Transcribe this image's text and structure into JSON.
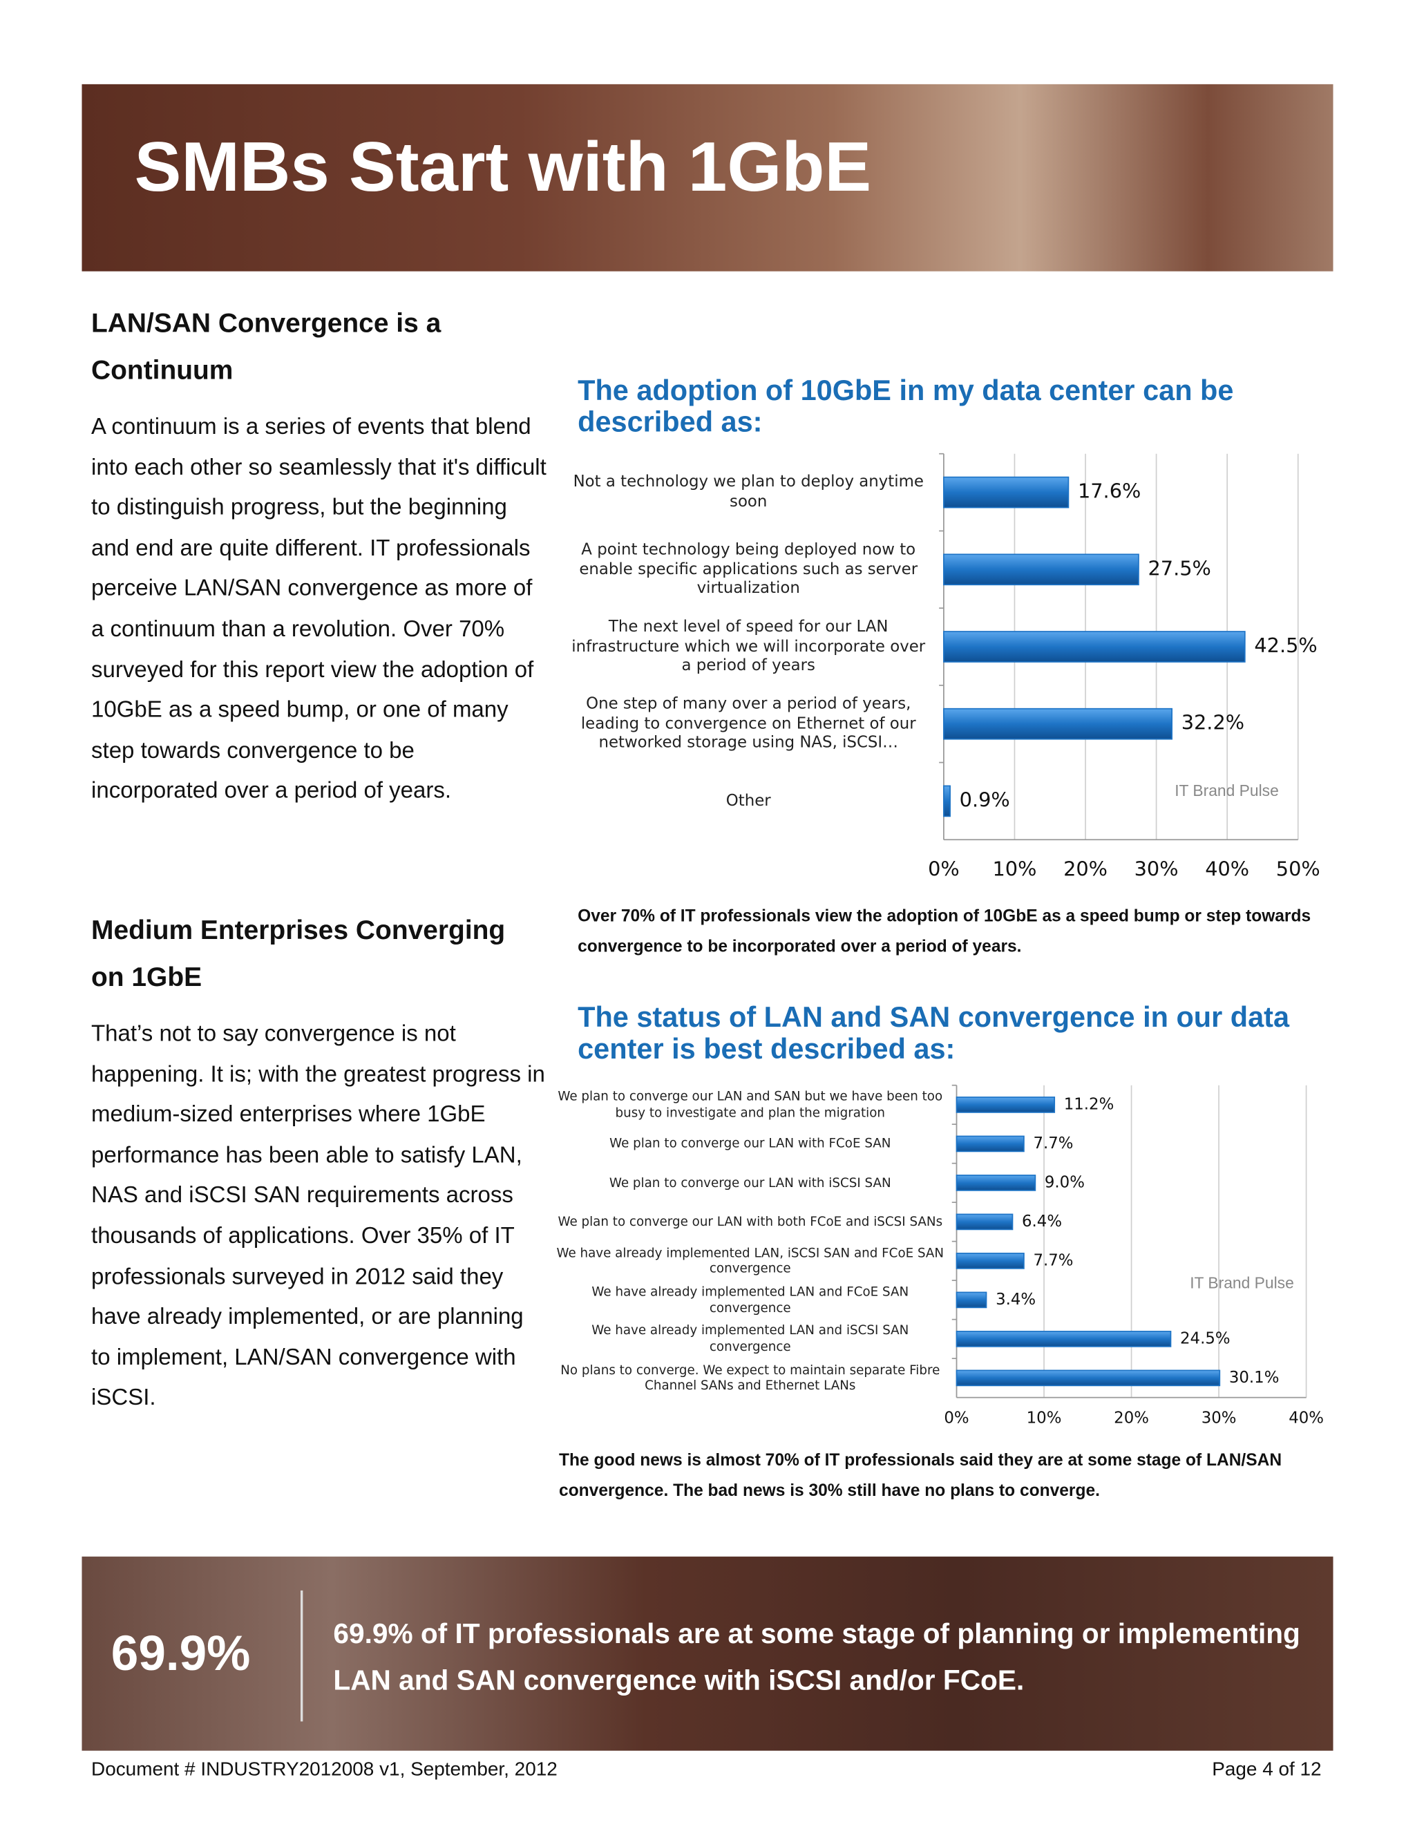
{
  "header": {
    "title": "SMBs Start with 1GbE"
  },
  "sections": [
    {
      "heading": "LAN/SAN Convergence is a Continuum",
      "body": "A continuum is a series of events that blend into each other so seamlessly that it's difficult to distinguish progress, but the beginning and end are quite different. IT professionals perceive LAN/SAN convergence as more of a continuum than a revolution.  Over 70% surveyed for this report view the adoption of 10GbE as a speed bump, or one of many step towards convergence to be incorporated over a period of years."
    },
    {
      "heading": "Medium Enterprises Converging on 1GbE",
      "body": "That’s not to say convergence is not happening. It is; with the greatest progress in medium-sized enterprises where 1GbE performance has been able to satisfy LAN, NAS and iSCSI SAN requirements across thousands of applications. Over 35% of IT professionals surveyed in 2012 said they have already implemented, or are planning to implement, LAN/SAN convergence with iSCSI."
    }
  ],
  "chart_data": [
    {
      "type": "bar",
      "orientation": "horizontal",
      "title": "The adoption of 10GbE in my data center can be described as:",
      "categories": [
        "Not a technology we plan to deploy anytime soon",
        "A point technology being deployed now to enable specific applications such as server virtualization",
        "The next level of speed for our LAN infrastructure which we will incorporate over a period of years",
        "One step of many over a period of years, leading to convergence on Ethernet of our networked storage using NAS, iSCSI…",
        "Other"
      ],
      "values": [
        17.6,
        27.5,
        42.5,
        32.2,
        0.9
      ],
      "value_labels": [
        "17.6%",
        "27.5%",
        "42.5%",
        "32.2%",
        "0.9%"
      ],
      "color": "#1e74c6",
      "xlim": [
        0,
        50
      ],
      "xticks": [
        {
          "value": 0,
          "label": "0%"
        },
        {
          "value": 10,
          "label": "10%"
        },
        {
          "value": 20,
          "label": "20%"
        },
        {
          "value": 30,
          "label": "30%"
        },
        {
          "value": 40,
          "label": "40%"
        },
        {
          "value": 50,
          "label": "50%"
        }
      ],
      "grid": true,
      "annotation": "IT Brand Pulse",
      "caption": "Over 70% of IT professionals view the adoption of 10GbE as a speed bump or step towards convergence to be incorporated over a period of years."
    },
    {
      "type": "bar",
      "orientation": "horizontal",
      "title": "The status of LAN and SAN convergence in our data center is best described as:",
      "categories": [
        "We plan to converge our LAN and SAN but we have been too busy to investigate and plan the migration",
        "We plan to converge our LAN with FCoE SAN",
        "We plan to converge our LAN with iSCSI SAN",
        "We plan to converge our LAN with both FCoE and iSCSI SANs",
        "We have already implemented LAN, iSCSI SAN and FCoE SAN convergence",
        "We have already implemented LAN and FCoE SAN convergence",
        "We have already implemented LAN and iSCSI SAN convergence",
        "No plans to converge. We expect to maintain separate Fibre Channel SANs and Ethernet LANs"
      ],
      "values": [
        11.2,
        7.7,
        9.0,
        6.4,
        7.7,
        3.4,
        24.5,
        30.1
      ],
      "value_labels": [
        "11.2%",
        "7.7%",
        "9.0%",
        "6.4%",
        "7.7%",
        "3.4%",
        "24.5%",
        "30.1%"
      ],
      "color": "#1e74c6",
      "xlim": [
        0,
        40
      ],
      "xticks": [
        {
          "value": 0,
          "label": "0%"
        },
        {
          "value": 10,
          "label": "10%"
        },
        {
          "value": 20,
          "label": "20%"
        },
        {
          "value": 30,
          "label": "30%"
        },
        {
          "value": 40,
          "label": "40%"
        }
      ],
      "grid": true,
      "annotation": "IT Brand Pulse",
      "caption": "The good news is almost 70% of IT professionals said they are at some stage of LAN/SAN convergence. The bad news is 30% still have no plans to converge."
    }
  ],
  "callout": {
    "figure": "69.9%",
    "text": "69.9% of IT professionals are at some stage of planning or implementing LAN and SAN convergence with iSCSI and/or FCoE."
  },
  "footer": {
    "left": "Document # INDUSTRY2012008 v1, September, 2012",
    "right": "Page  4 of 12"
  }
}
